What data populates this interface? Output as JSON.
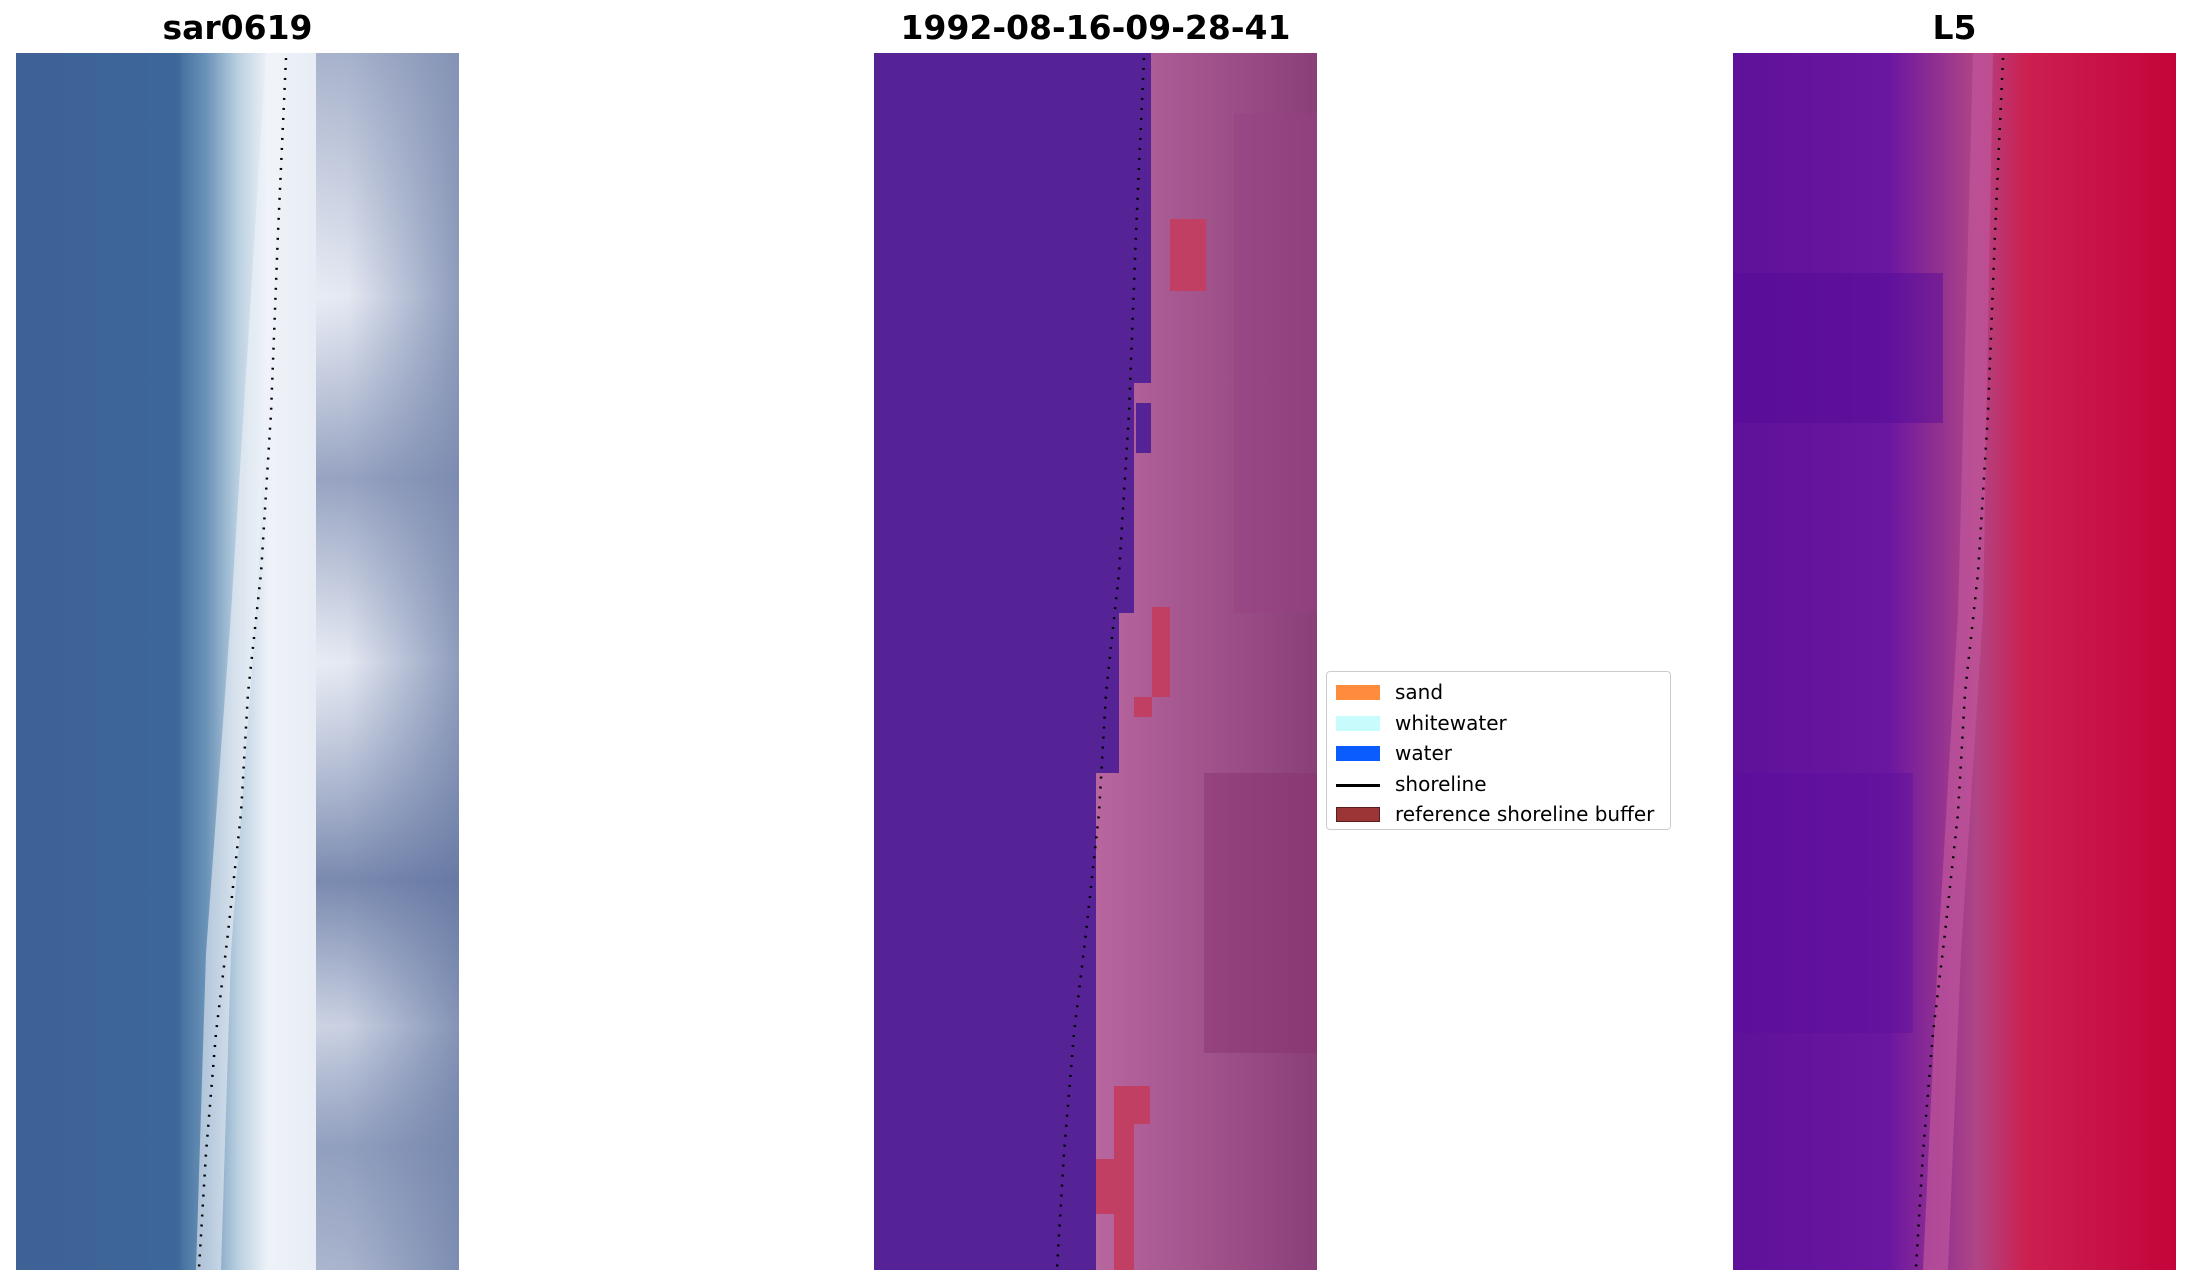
{
  "figure": {
    "panels": [
      {
        "title": "sar0619"
      },
      {
        "title": "1992-08-16-09-28-41"
      },
      {
        "title": "L5"
      }
    ],
    "legend": {
      "items": [
        {
          "label": "sand",
          "color": "#ff8c3c",
          "kind": "patch"
        },
        {
          "label": "whitewater",
          "color": "#c8fcfc",
          "kind": "patch"
        },
        {
          "label": "water",
          "color": "#0a5cff",
          "kind": "patch"
        },
        {
          "label": "shoreline",
          "color": "#000000",
          "kind": "line"
        },
        {
          "label": "reference shoreline buffer",
          "color": "#9b3536",
          "kind": "patch"
        }
      ]
    }
  }
}
